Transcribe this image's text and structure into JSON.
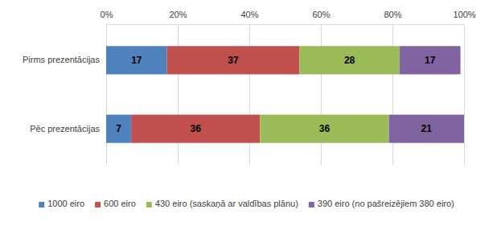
{
  "chart_data": {
    "type": "bar",
    "orientation": "horizontal",
    "stacked": true,
    "data_labels": true,
    "grid": true,
    "legend": "bottom",
    "categories": [
      "Pirms prezentācijas",
      "Pēc prezentācijas"
    ],
    "series": [
      {
        "name": "1000 eiro",
        "color": "#4f81bd",
        "values": [
          17,
          7
        ]
      },
      {
        "name": "600 eiro",
        "color": "#c0504d",
        "values": [
          37,
          36
        ]
      },
      {
        "name": "430 eiro (saskaņā ar valdības plānu)",
        "color": "#9bbb59",
        "values": [
          28,
          36
        ]
      },
      {
        "name": "390 eiro (no pašreizējiem 380 eiro)",
        "color": "#8064a2",
        "values": [
          17,
          21
        ]
      }
    ],
    "xlim": [
      0,
      100
    ],
    "xticks": [
      {
        "value": 0,
        "label": "0%"
      },
      {
        "value": 20,
        "label": "20%"
      },
      {
        "value": 40,
        "label": "40%"
      },
      {
        "value": 60,
        "label": "60%"
      },
      {
        "value": 80,
        "label": "80%"
      },
      {
        "value": 100,
        "label": "100%"
      }
    ]
  }
}
